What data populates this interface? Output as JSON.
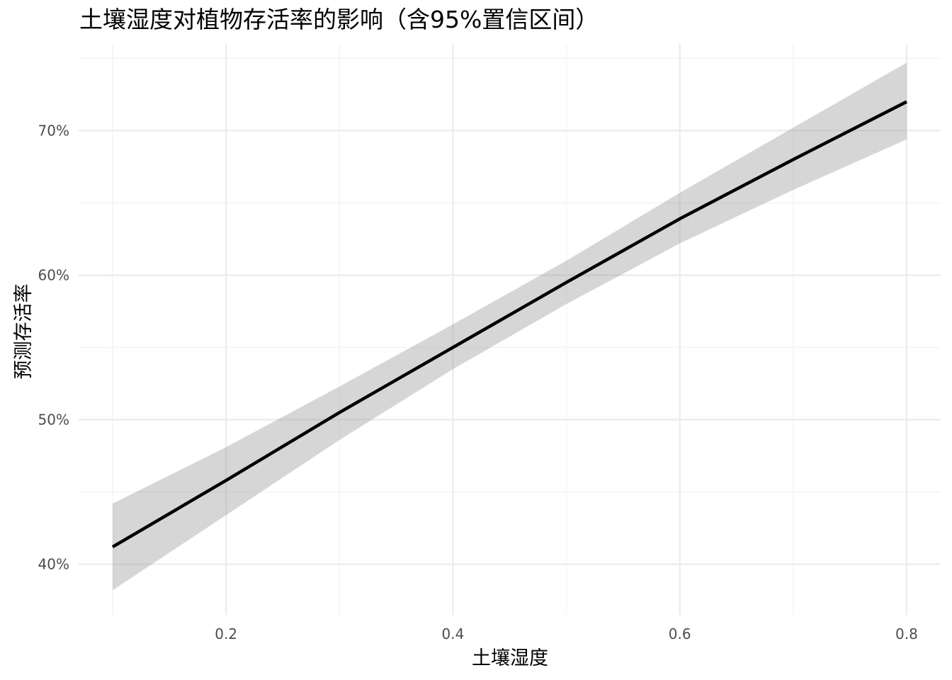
{
  "chart_data": {
    "type": "line",
    "title": "土壤湿度对植物存活率的影响（含95%置信区间）",
    "xlabel": "土壤湿度",
    "ylabel": "预测存活率",
    "xlim": [
      0.07,
      0.83
    ],
    "ylim": [
      0.365,
      0.76
    ],
    "x_ticks": [
      0.2,
      0.4,
      0.6,
      0.8
    ],
    "x_tick_labels": [
      "0.2",
      "0.4",
      "0.6",
      "0.8"
    ],
    "y_ticks": [
      0.4,
      0.5,
      0.6,
      0.7
    ],
    "y_tick_labels": [
      "40%",
      "50%",
      "60%",
      "70%"
    ],
    "x_minor_gridlines": [
      0.1,
      0.3,
      0.5,
      0.7
    ],
    "y_minor_gridlines": [
      0.45,
      0.55,
      0.65,
      0.75
    ],
    "grid": true,
    "series": [
      {
        "x": [
          0.1,
          0.2,
          0.3,
          0.4,
          0.5,
          0.6,
          0.7,
          0.8
        ],
        "y": [
          0.412,
          0.458,
          0.505,
          0.55,
          0.595,
          0.639,
          0.68,
          0.72
        ],
        "lower": [
          0.382,
          0.434,
          0.486,
          0.535,
          0.58,
          0.622,
          0.659,
          0.694
        ],
        "upper": [
          0.442,
          0.481,
          0.523,
          0.566,
          0.61,
          0.657,
          0.702,
          0.747
        ],
        "line_color": "#000000",
        "band_color": "#999999"
      }
    ],
    "colors": {
      "grid_major": "#ebebeb",
      "grid_minor": "#f4f4f4",
      "tick_text": "#4d4d4d"
    }
  }
}
